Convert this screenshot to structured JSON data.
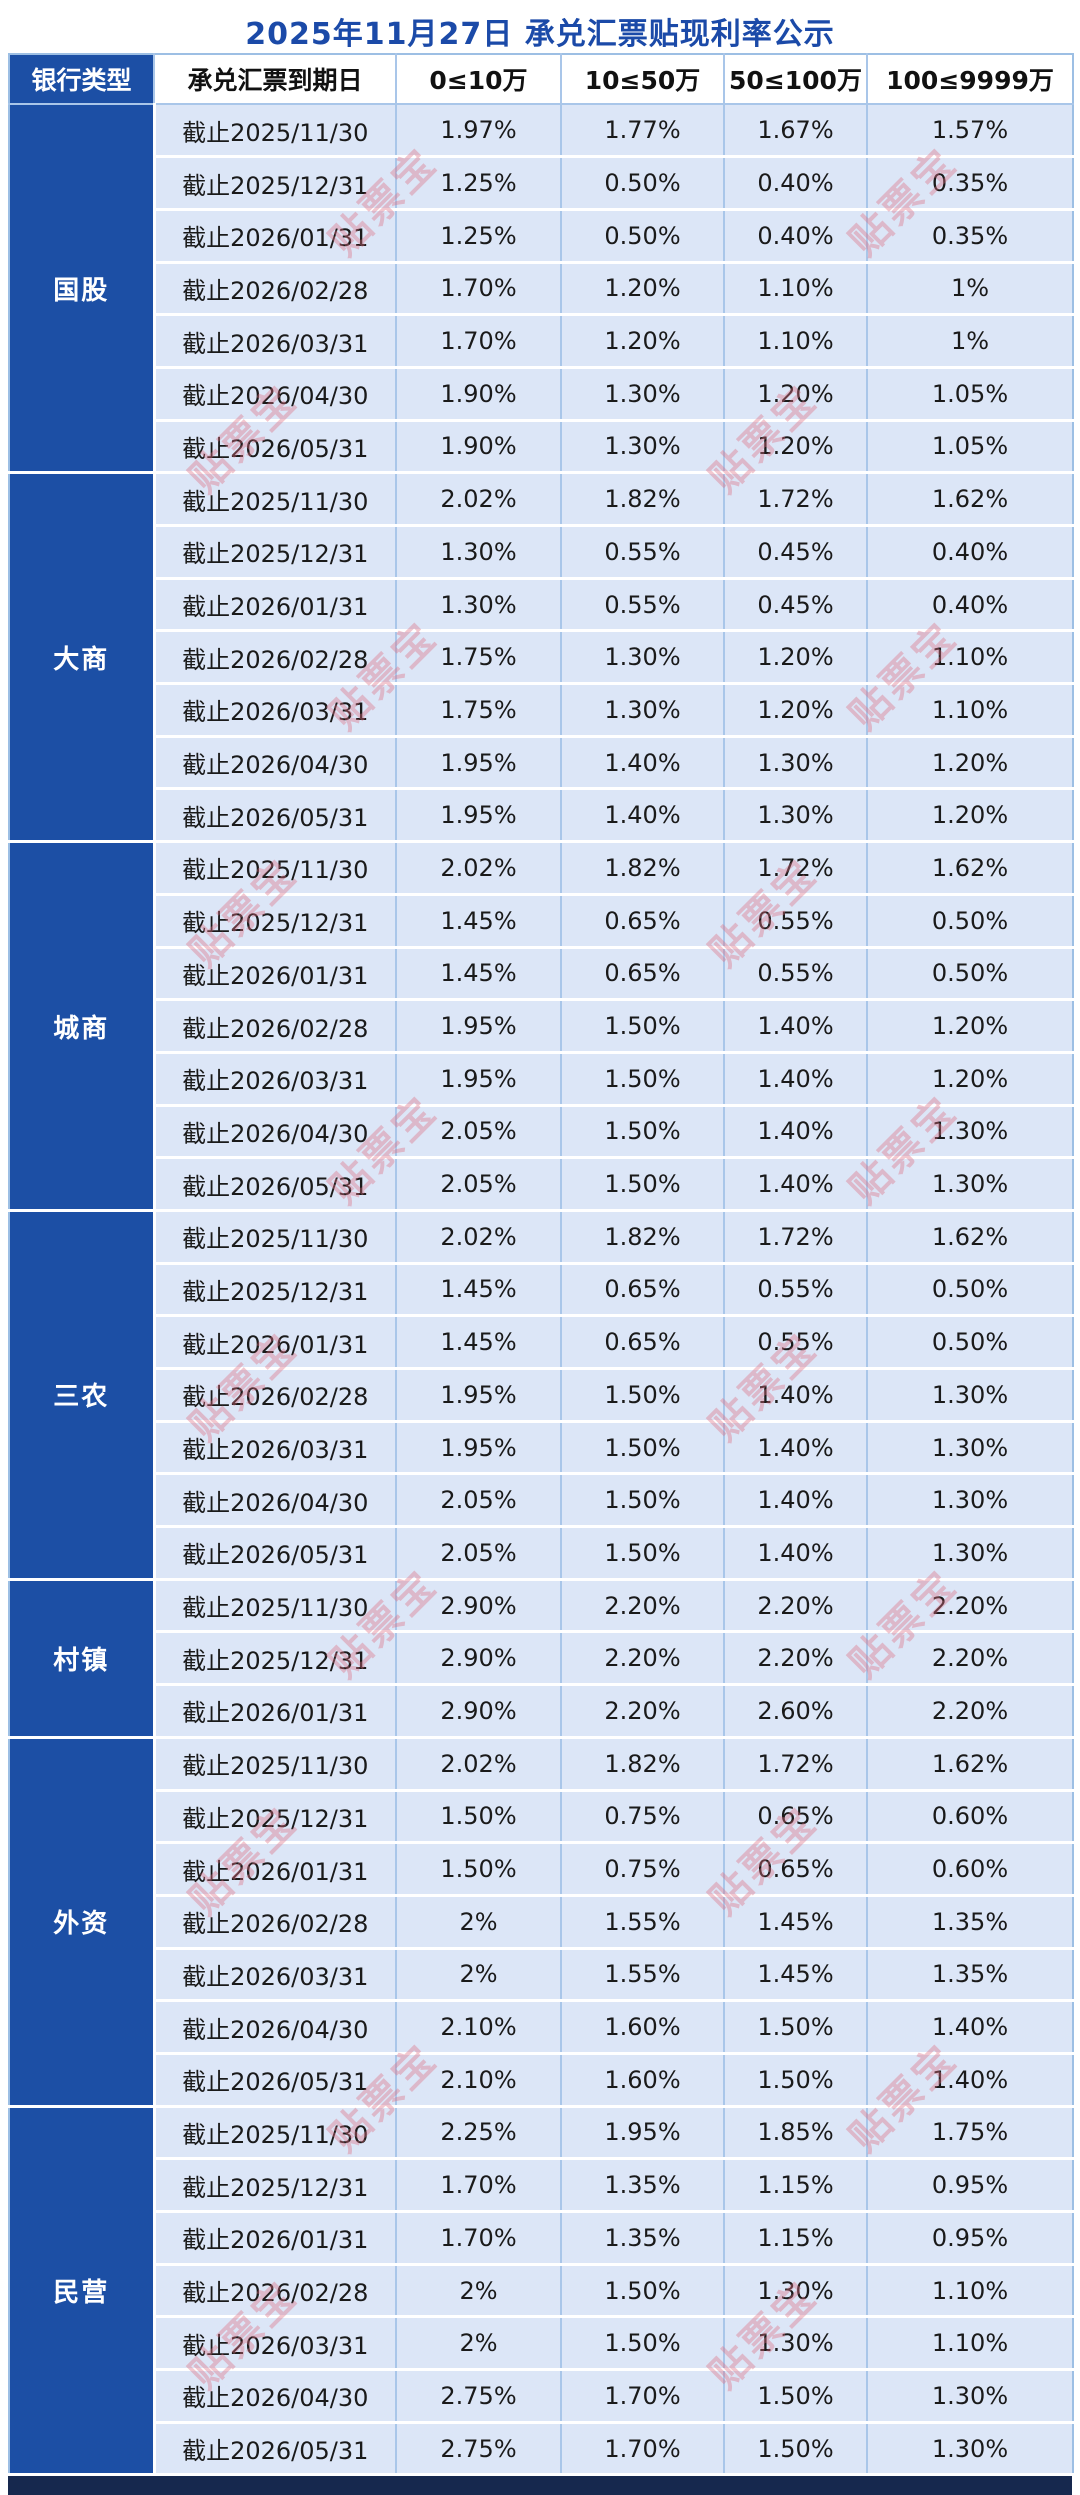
{
  "title": "2025年11月27日 承兑汇票贴现利率公示",
  "watermark": {
    "text": "贴票宝",
    "color": "#de6e82"
  },
  "colors": {
    "header_blue": "#1c4fa5",
    "title_blue": "#1b4aa8",
    "row_background": "#dce6f7",
    "divider_blue": "#a9c6e9",
    "bottom_band_navy": "#16284e",
    "watermark_pink": "#de6e82"
  },
  "chart_data": {
    "type": "table",
    "title": "2025年11月27日 承兑汇票贴现利率公示",
    "columns": [
      "银行类型",
      "承兑汇票到期日",
      "0≤10万",
      "10≤50万",
      "50≤100万",
      "100≤9999万"
    ],
    "groups": [
      {
        "bank_type": "国股",
        "rows": [
          {
            "maturity": "截止2025/11/30",
            "rates": [
              "1.97%",
              "1.77%",
              "1.67%",
              "1.57%"
            ]
          },
          {
            "maturity": "截止2025/12/31",
            "rates": [
              "1.25%",
              "0.50%",
              "0.40%",
              "0.35%"
            ]
          },
          {
            "maturity": "截止2026/01/31",
            "rates": [
              "1.25%",
              "0.50%",
              "0.40%",
              "0.35%"
            ]
          },
          {
            "maturity": "截止2026/02/28",
            "rates": [
              "1.70%",
              "1.20%",
              "1.10%",
              "1%"
            ]
          },
          {
            "maturity": "截止2026/03/31",
            "rates": [
              "1.70%",
              "1.20%",
              "1.10%",
              "1%"
            ]
          },
          {
            "maturity": "截止2026/04/30",
            "rates": [
              "1.90%",
              "1.30%",
              "1.20%",
              "1.05%"
            ]
          },
          {
            "maturity": "截止2026/05/31",
            "rates": [
              "1.90%",
              "1.30%",
              "1.20%",
              "1.05%"
            ]
          }
        ]
      },
      {
        "bank_type": "大商",
        "rows": [
          {
            "maturity": "截止2025/11/30",
            "rates": [
              "2.02%",
              "1.82%",
              "1.72%",
              "1.62%"
            ]
          },
          {
            "maturity": "截止2025/12/31",
            "rates": [
              "1.30%",
              "0.55%",
              "0.45%",
              "0.40%"
            ]
          },
          {
            "maturity": "截止2026/01/31",
            "rates": [
              "1.30%",
              "0.55%",
              "0.45%",
              "0.40%"
            ]
          },
          {
            "maturity": "截止2026/02/28",
            "rates": [
              "1.75%",
              "1.30%",
              "1.20%",
              "1.10%"
            ]
          },
          {
            "maturity": "截止2026/03/31",
            "rates": [
              "1.75%",
              "1.30%",
              "1.20%",
              "1.10%"
            ]
          },
          {
            "maturity": "截止2026/04/30",
            "rates": [
              "1.95%",
              "1.40%",
              "1.30%",
              "1.20%"
            ]
          },
          {
            "maturity": "截止2026/05/31",
            "rates": [
              "1.95%",
              "1.40%",
              "1.30%",
              "1.20%"
            ]
          }
        ]
      },
      {
        "bank_type": "城商",
        "rows": [
          {
            "maturity": "截止2025/11/30",
            "rates": [
              "2.02%",
              "1.82%",
              "1.72%",
              "1.62%"
            ]
          },
          {
            "maturity": "截止2025/12/31",
            "rates": [
              "1.45%",
              "0.65%",
              "0.55%",
              "0.50%"
            ]
          },
          {
            "maturity": "截止2026/01/31",
            "rates": [
              "1.45%",
              "0.65%",
              "0.55%",
              "0.50%"
            ]
          },
          {
            "maturity": "截止2026/02/28",
            "rates": [
              "1.95%",
              "1.50%",
              "1.40%",
              "1.20%"
            ]
          },
          {
            "maturity": "截止2026/03/31",
            "rates": [
              "1.95%",
              "1.50%",
              "1.40%",
              "1.20%"
            ]
          },
          {
            "maturity": "截止2026/04/30",
            "rates": [
              "2.05%",
              "1.50%",
              "1.40%",
              "1.30%"
            ]
          },
          {
            "maturity": "截止2026/05/31",
            "rates": [
              "2.05%",
              "1.50%",
              "1.40%",
              "1.30%"
            ]
          }
        ]
      },
      {
        "bank_type": "三农",
        "rows": [
          {
            "maturity": "截止2025/11/30",
            "rates": [
              "2.02%",
              "1.82%",
              "1.72%",
              "1.62%"
            ]
          },
          {
            "maturity": "截止2025/12/31",
            "rates": [
              "1.45%",
              "0.65%",
              "0.55%",
              "0.50%"
            ]
          },
          {
            "maturity": "截止2026/01/31",
            "rates": [
              "1.45%",
              "0.65%",
              "0.55%",
              "0.50%"
            ]
          },
          {
            "maturity": "截止2026/02/28",
            "rates": [
              "1.95%",
              "1.50%",
              "1.40%",
              "1.30%"
            ]
          },
          {
            "maturity": "截止2026/03/31",
            "rates": [
              "1.95%",
              "1.50%",
              "1.40%",
              "1.30%"
            ]
          },
          {
            "maturity": "截止2026/04/30",
            "rates": [
              "2.05%",
              "1.50%",
              "1.40%",
              "1.30%"
            ]
          },
          {
            "maturity": "截止2026/05/31",
            "rates": [
              "2.05%",
              "1.50%",
              "1.40%",
              "1.30%"
            ]
          }
        ]
      },
      {
        "bank_type": "村镇",
        "rows": [
          {
            "maturity": "截止2025/11/30",
            "rates": [
              "2.90%",
              "2.20%",
              "2.20%",
              "2.20%"
            ]
          },
          {
            "maturity": "截止2025/12/31",
            "rates": [
              "2.90%",
              "2.20%",
              "2.20%",
              "2.20%"
            ]
          },
          {
            "maturity": "截止2026/01/31",
            "rates": [
              "2.90%",
              "2.20%",
              "2.60%",
              "2.20%"
            ]
          }
        ]
      },
      {
        "bank_type": "外资",
        "rows": [
          {
            "maturity": "截止2025/11/30",
            "rates": [
              "2.02%",
              "1.82%",
              "1.72%",
              "1.62%"
            ]
          },
          {
            "maturity": "截止2025/12/31",
            "rates": [
              "1.50%",
              "0.75%",
              "0.65%",
              "0.60%"
            ]
          },
          {
            "maturity": "截止2026/01/31",
            "rates": [
              "1.50%",
              "0.75%",
              "0.65%",
              "0.60%"
            ]
          },
          {
            "maturity": "截止2026/02/28",
            "rates": [
              "2%",
              "1.55%",
              "1.45%",
              "1.35%"
            ]
          },
          {
            "maturity": "截止2026/03/31",
            "rates": [
              "2%",
              "1.55%",
              "1.45%",
              "1.35%"
            ]
          },
          {
            "maturity": "截止2026/04/30",
            "rates": [
              "2.10%",
              "1.60%",
              "1.50%",
              "1.40%"
            ]
          },
          {
            "maturity": "截止2026/05/31",
            "rates": [
              "2.10%",
              "1.60%",
              "1.50%",
              "1.40%"
            ]
          }
        ]
      },
      {
        "bank_type": "民营",
        "rows": [
          {
            "maturity": "截止2025/11/30",
            "rates": [
              "2.25%",
              "1.95%",
              "1.85%",
              "1.75%"
            ]
          },
          {
            "maturity": "截止2025/12/31",
            "rates": [
              "1.70%",
              "1.35%",
              "1.15%",
              "0.95%"
            ]
          },
          {
            "maturity": "截止2026/01/31",
            "rates": [
              "1.70%",
              "1.35%",
              "1.15%",
              "0.95%"
            ]
          },
          {
            "maturity": "截止2026/02/28",
            "rates": [
              "2%",
              "1.50%",
              "1.30%",
              "1.10%"
            ]
          },
          {
            "maturity": "截止2026/03/31",
            "rates": [
              "2%",
              "1.50%",
              "1.30%",
              "1.10%"
            ]
          },
          {
            "maturity": "截止2026/04/30",
            "rates": [
              "2.75%",
              "1.70%",
              "1.50%",
              "1.30%"
            ]
          },
          {
            "maturity": "截止2026/05/31",
            "rates": [
              "2.75%",
              "1.70%",
              "1.50%",
              "1.30%"
            ]
          }
        ]
      }
    ]
  }
}
